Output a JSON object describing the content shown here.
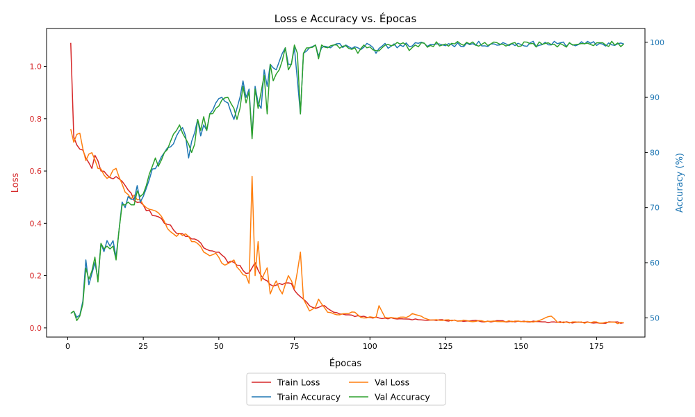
{
  "chart_data": {
    "type": "line",
    "title": "Loss e Accuracy vs. Épocas",
    "xlabel": "Épocas",
    "ylabel_left": "Loss",
    "ylabel_right": "Accuracy (%)",
    "xlim": [
      -7,
      191
    ],
    "ylim_left": [
      -0.035,
      1.145
    ],
    "ylim_right": [
      46.5,
      102.5
    ],
    "x_ticks": [
      0,
      25,
      50,
      75,
      100,
      125,
      150,
      175
    ],
    "y_left_ticks": [
      0.0,
      0.2,
      0.4,
      0.6,
      0.8,
      1.0
    ],
    "y_right_ticks": [
      50,
      60,
      70,
      80,
      90,
      100
    ],
    "grid": false,
    "legend_placement": "bottom-center, outside plot",
    "colors": {
      "loss_axis": "#d62728",
      "accuracy_axis": "#1f77b4"
    },
    "series": [
      {
        "name": "Train Loss",
        "axis": "left",
        "color": "#d62728",
        "anchors": [
          [
            1,
            1.09
          ],
          [
            2,
            0.73
          ],
          [
            3,
            0.7
          ],
          [
            5,
            0.68
          ],
          [
            6,
            0.65
          ],
          [
            8,
            0.61
          ],
          [
            9,
            0.66
          ],
          [
            11,
            0.6
          ],
          [
            13,
            0.585
          ],
          [
            15,
            0.57
          ],
          [
            17,
            0.57
          ],
          [
            19,
            0.545
          ],
          [
            21,
            0.515
          ],
          [
            23,
            0.48
          ],
          [
            25,
            0.47
          ],
          [
            28,
            0.43
          ],
          [
            30,
            0.425
          ],
          [
            32,
            0.4
          ],
          [
            35,
            0.375
          ],
          [
            38,
            0.36
          ],
          [
            40,
            0.35
          ],
          [
            42,
            0.34
          ],
          [
            44,
            0.325
          ],
          [
            46,
            0.3
          ],
          [
            50,
            0.29
          ],
          [
            53,
            0.25
          ],
          [
            56,
            0.24
          ],
          [
            58,
            0.22
          ],
          [
            60,
            0.21
          ],
          [
            62,
            0.25
          ],
          [
            64,
            0.2
          ],
          [
            66,
            0.18
          ],
          [
            68,
            0.16
          ],
          [
            70,
            0.17
          ],
          [
            74,
            0.17
          ],
          [
            76,
            0.13
          ],
          [
            78,
            0.11
          ],
          [
            80,
            0.085
          ],
          [
            82,
            0.075
          ],
          [
            85,
            0.085
          ],
          [
            88,
            0.06
          ],
          [
            92,
            0.05
          ],
          [
            100,
            0.04
          ],
          [
            110,
            0.035
          ],
          [
            120,
            0.03
          ],
          [
            130,
            0.027
          ],
          [
            150,
            0.024
          ],
          [
            170,
            0.021
          ],
          [
            184,
            0.02
          ]
        ],
        "noise": 0.012,
        "seed": 3
      },
      {
        "name": "Val Loss",
        "axis": "left",
        "color": "#ff7f0e",
        "anchors": [
          [
            1,
            0.76
          ],
          [
            2,
            0.71
          ],
          [
            3,
            0.74
          ],
          [
            4,
            0.745
          ],
          [
            6,
            0.64
          ],
          [
            8,
            0.67
          ],
          [
            10,
            0.61
          ],
          [
            12,
            0.585
          ],
          [
            14,
            0.58
          ],
          [
            16,
            0.61
          ],
          [
            18,
            0.55
          ],
          [
            20,
            0.51
          ],
          [
            23,
            0.49
          ],
          [
            26,
            0.46
          ],
          [
            30,
            0.44
          ],
          [
            33,
            0.38
          ],
          [
            36,
            0.35
          ],
          [
            39,
            0.36
          ],
          [
            42,
            0.33
          ],
          [
            45,
            0.29
          ],
          [
            48,
            0.28
          ],
          [
            50,
            0.27
          ],
          [
            52,
            0.24
          ],
          [
            55,
            0.26
          ],
          [
            57,
            0.22
          ],
          [
            59,
            0.2
          ],
          [
            60,
            0.17
          ],
          [
            61,
            0.58
          ],
          [
            62,
            0.2
          ],
          [
            63,
            0.33
          ],
          [
            64,
            0.18
          ],
          [
            66,
            0.23
          ],
          [
            67,
            0.13
          ],
          [
            69,
            0.18
          ],
          [
            71,
            0.13
          ],
          [
            73,
            0.2
          ],
          [
            75,
            0.15
          ],
          [
            77,
            0.29
          ],
          [
            78,
            0.11
          ],
          [
            80,
            0.065
          ],
          [
            82,
            0.08
          ],
          [
            83,
            0.11
          ],
          [
            86,
            0.06
          ],
          [
            90,
            0.05
          ],
          [
            95,
            0.06
          ],
          [
            97,
            0.04
          ],
          [
            102,
            0.04
          ],
          [
            103,
            0.085
          ],
          [
            105,
            0.04
          ],
          [
            112,
            0.04
          ],
          [
            114,
            0.055
          ],
          [
            120,
            0.03
          ],
          [
            140,
            0.025
          ],
          [
            155,
            0.025
          ],
          [
            160,
            0.045
          ],
          [
            162,
            0.022
          ],
          [
            184,
            0.019
          ]
        ],
        "noise": 0.012,
        "seed": 7
      },
      {
        "name": "Train Accuracy",
        "axis": "right",
        "color": "#1f77b4",
        "anchors": [
          [
            1,
            50.8
          ],
          [
            2,
            51.2
          ],
          [
            3,
            50.1
          ],
          [
            4,
            50.5
          ],
          [
            5,
            53
          ],
          [
            6,
            60.5
          ],
          [
            7,
            56
          ],
          [
            8,
            58
          ],
          [
            9,
            60
          ],
          [
            10,
            57
          ],
          [
            11,
            63.5
          ],
          [
            12,
            62
          ],
          [
            13,
            64
          ],
          [
            14,
            63
          ],
          [
            15,
            64
          ],
          [
            16,
            61
          ],
          [
            17,
            66
          ],
          [
            18,
            71
          ],
          [
            19,
            70
          ],
          [
            20,
            72
          ],
          [
            22,
            71.5
          ],
          [
            23,
            74
          ],
          [
            24,
            71
          ],
          [
            26,
            73.5
          ],
          [
            28,
            77
          ],
          [
            30,
            78
          ],
          [
            32,
            80
          ],
          [
            34,
            81
          ],
          [
            36,
            83
          ],
          [
            38,
            84.5
          ],
          [
            39,
            83
          ],
          [
            40,
            79
          ],
          [
            41,
            82
          ],
          [
            43,
            86
          ],
          [
            44,
            83
          ],
          [
            45,
            85
          ],
          [
            46,
            84
          ],
          [
            47,
            87
          ],
          [
            49,
            89
          ],
          [
            51,
            90
          ],
          [
            53,
            89
          ],
          [
            55,
            86
          ],
          [
            56,
            88
          ],
          [
            57,
            90
          ],
          [
            58,
            93
          ],
          [
            59,
            90
          ],
          [
            60,
            91.5
          ],
          [
            61,
            83
          ],
          [
            62,
            92
          ],
          [
            63,
            89
          ],
          [
            64,
            88
          ],
          [
            65,
            95
          ],
          [
            66,
            92
          ],
          [
            67,
            96
          ],
          [
            69,
            95
          ],
          [
            71,
            98
          ],
          [
            72,
            99
          ],
          [
            73,
            96
          ],
          [
            74,
            96
          ],
          [
            75,
            99
          ],
          [
            77,
            87
          ],
          [
            78,
            98
          ],
          [
            80,
            99
          ],
          [
            82,
            99.5
          ],
          [
            83,
            97.5
          ],
          [
            84,
            99
          ],
          [
            88,
            99.5
          ],
          [
            92,
            99.5
          ],
          [
            96,
            99
          ],
          [
            100,
            99.5
          ],
          [
            102,
            98
          ],
          [
            104,
            99.3
          ],
          [
            110,
            99.5
          ],
          [
            120,
            99.6
          ],
          [
            140,
            99.7
          ],
          [
            184,
            99.7
          ]
        ],
        "noise": 0.5,
        "seed": 11
      },
      {
        "name": "Val Accuracy",
        "axis": "right",
        "color": "#2ca02c",
        "anchors": [
          [
            1,
            50.8
          ],
          [
            2,
            51.2
          ],
          [
            3,
            49.5
          ],
          [
            4,
            50.3
          ],
          [
            5,
            52.5
          ],
          [
            6,
            59
          ],
          [
            7,
            57
          ],
          [
            8,
            58.5
          ],
          [
            9,
            61
          ],
          [
            10,
            56.5
          ],
          [
            11,
            63.5
          ],
          [
            12,
            62.5
          ],
          [
            13,
            63
          ],
          [
            14,
            62.5
          ],
          [
            15,
            63
          ],
          [
            16,
            60.5
          ],
          [
            17,
            66
          ],
          [
            18,
            70.5
          ],
          [
            19,
            70.5
          ],
          [
            20,
            71
          ],
          [
            22,
            70.5
          ],
          [
            23,
            73
          ],
          [
            24,
            72
          ],
          [
            26,
            74
          ],
          [
            28,
            77.5
          ],
          [
            29,
            79
          ],
          [
            30,
            77.5
          ],
          [
            32,
            80
          ],
          [
            34,
            82
          ],
          [
            36,
            84
          ],
          [
            37,
            85
          ],
          [
            38,
            83.5
          ],
          [
            40,
            81.5
          ],
          [
            41,
            80
          ],
          [
            42,
            81.5
          ],
          [
            43,
            86
          ],
          [
            44,
            84
          ],
          [
            45,
            86.5
          ],
          [
            46,
            84
          ],
          [
            47,
            87
          ],
          [
            49,
            88
          ],
          [
            51,
            89.5
          ],
          [
            53,
            90
          ],
          [
            55,
            88
          ],
          [
            56,
            86
          ],
          [
            57,
            88
          ],
          [
            58,
            92
          ],
          [
            59,
            89
          ],
          [
            60,
            91
          ],
          [
            61,
            82.5
          ],
          [
            62,
            91.5
          ],
          [
            63,
            88
          ],
          [
            64,
            91
          ],
          [
            65,
            94
          ],
          [
            66,
            87
          ],
          [
            67,
            96
          ],
          [
            68,
            93
          ],
          [
            70,
            95
          ],
          [
            72,
            99
          ],
          [
            73,
            95
          ],
          [
            74,
            96
          ],
          [
            75,
            99.5
          ],
          [
            76,
            98
          ],
          [
            77,
            87
          ],
          [
            78,
            98
          ],
          [
            80,
            99
          ],
          [
            82,
            99.5
          ],
          [
            83,
            97
          ],
          [
            84,
            99.5
          ],
          [
            86,
            99
          ],
          [
            88,
            99.5
          ],
          [
            95,
            99
          ],
          [
            96,
            98
          ],
          [
            98,
            99.5
          ],
          [
            102,
            98.5
          ],
          [
            104,
            99
          ],
          [
            108,
            99.5
          ],
          [
            112,
            99.5
          ],
          [
            113,
            98.5
          ],
          [
            115,
            99.5
          ],
          [
            130,
            99.7
          ],
          [
            140,
            99.7
          ],
          [
            160,
            99.6
          ],
          [
            184,
            99.7
          ]
        ],
        "noise": 0.5,
        "seed": 19
      }
    ]
  }
}
